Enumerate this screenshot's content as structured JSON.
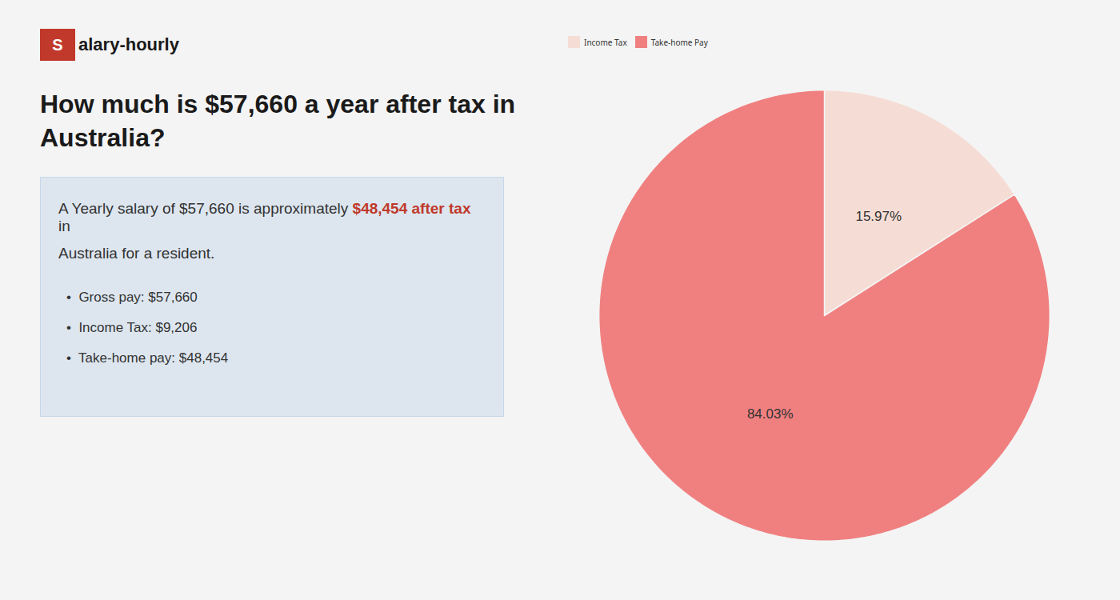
{
  "chart_data": {
    "type": "pie",
    "title": "How much is $57,660 a year after tax in\nAustralia?",
    "annotations": {
      "logo": [
        {
          "text": "S",
          "color": "#c0392b"
        },
        {
          "text": "alary-hourly"
        }
      ],
      "text": [
        [
          {
            "text": "A Yearly salary of $57,660 is approximately "
          },
          {
            "text": "$48,454 after tax",
            "color": "#c0392b"
          },
          {
            "text": " in"
          }
        ],
        [
          {
            "text": "Australia for a resident."
          }
        ]
      ],
      "bullets": [
        "•  Gross pay: $57,660",
        "•  Income Tax: $9,206",
        "•  Take-home pay: $48,454"
      ]
    },
    "categories": [
      "Income Tax",
      "Take-home Pay"
    ],
    "values": [
      15.97,
      84.03
    ],
    "value_labels": [
      "15.97%",
      "84.03%"
    ],
    "colors": [
      "#f5ddd5",
      "#f08080"
    ],
    "data_labels": true,
    "legend": "top"
  }
}
